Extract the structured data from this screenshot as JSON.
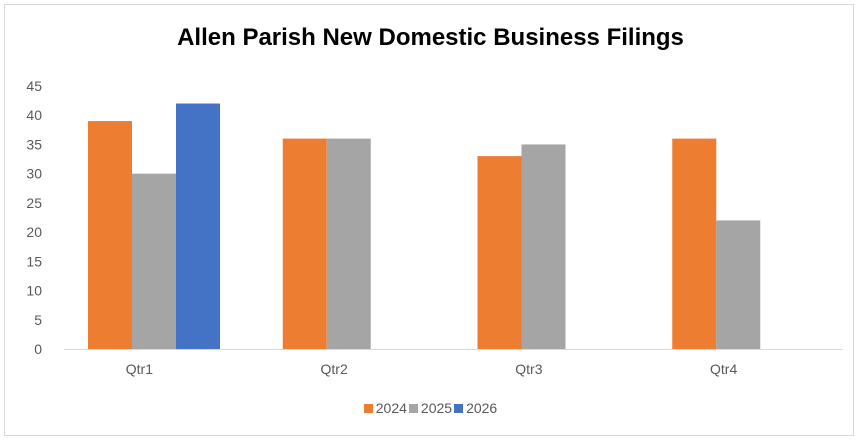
{
  "chart_data": {
    "type": "bar",
    "title": "Allen Parish New Domestic Business Filings",
    "categories": [
      "Qtr1",
      "Qtr2",
      "Qtr3",
      "Qtr4"
    ],
    "series": [
      {
        "name": "2024",
        "color": "#ED7D31",
        "values": [
          39,
          36,
          33,
          36
        ]
      },
      {
        "name": "2025",
        "color": "#A5A5A5",
        "values": [
          30,
          36,
          35,
          22
        ]
      },
      {
        "name": "2026",
        "color": "#4472C4",
        "values": [
          42,
          null,
          null,
          null
        ]
      }
    ],
    "ylim": [
      0,
      45
    ],
    "yticks": [
      "0",
      "5",
      "10",
      "15",
      "20",
      "25",
      "30",
      "35",
      "40",
      "45"
    ],
    "xlabel": "",
    "ylabel": "",
    "grid": false,
    "legend_position": "bottom"
  }
}
